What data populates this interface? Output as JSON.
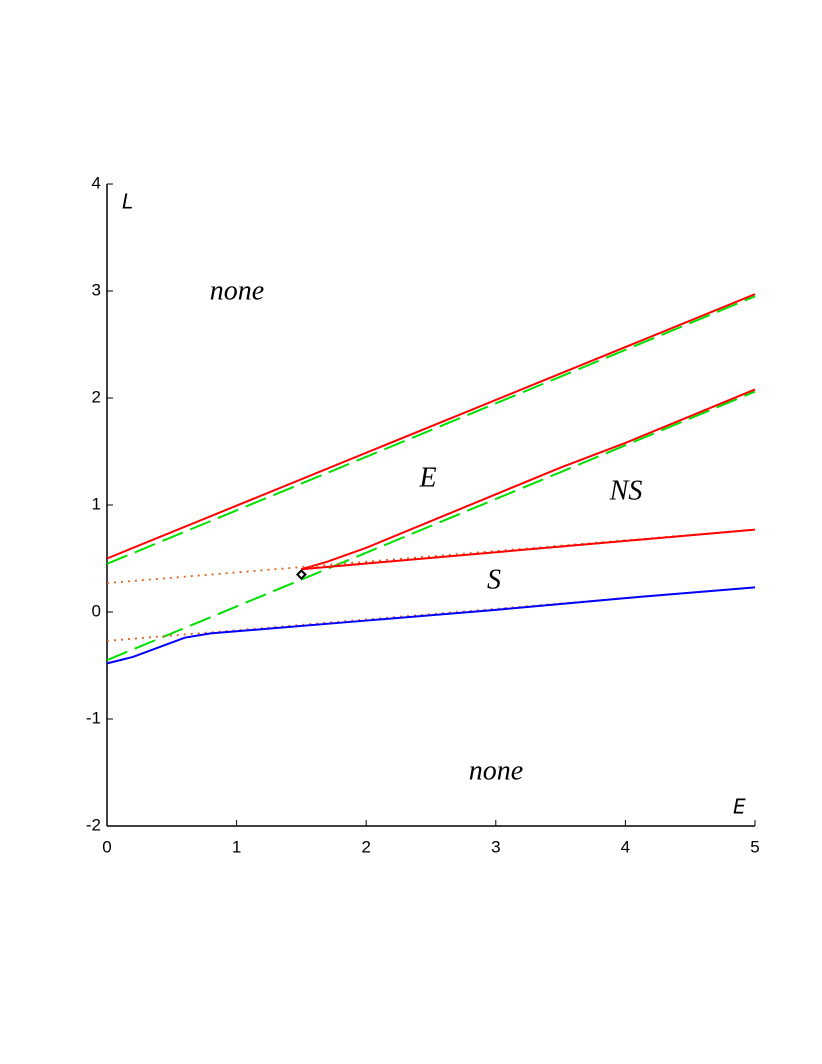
{
  "chart_data": {
    "type": "line",
    "x_label": "E",
    "y_label": "L",
    "xlim": [
      0,
      5
    ],
    "ylim": [
      -2,
      4
    ],
    "xticks": [
      0,
      1,
      2,
      3,
      4,
      5
    ],
    "yticks": [
      -2,
      -1,
      0,
      1,
      2,
      3,
      4
    ],
    "annotations": [
      "none",
      "E",
      "NS",
      "S",
      "none"
    ],
    "series": [
      {
        "color": "#ff0000",
        "style": "solid",
        "x": [
          0,
          5
        ],
        "values": [
          0.5,
          2.97
        ]
      },
      {
        "color": "#00e000",
        "style": "dash",
        "x": [
          0,
          5
        ],
        "values": [
          0.45,
          2.95
        ]
      },
      {
        "color": "#00e000",
        "style": "dash",
        "x": [
          0,
          5
        ],
        "values": [
          -0.45,
          2.06
        ]
      },
      {
        "color": "#ff0000",
        "style": "solid",
        "x": [
          1.5,
          1.7,
          2,
          2.5,
          3,
          3.5,
          4,
          4.5,
          5
        ],
        "values": [
          0.4,
          0.47,
          0.6,
          0.85,
          1.1,
          1.35,
          1.58,
          1.83,
          2.08
        ]
      },
      {
        "color": "#e06020",
        "style": "dot",
        "x": [
          0,
          5
        ],
        "values": [
          0.27,
          0.77
        ]
      },
      {
        "color": "#ff0000",
        "style": "solid",
        "x": [
          1.5,
          5
        ],
        "values": [
          0.4,
          0.77
        ]
      },
      {
        "color": "#e06020",
        "style": "dot",
        "x": [
          0,
          5
        ],
        "values": [
          -0.27,
          0.23
        ]
      },
      {
        "color": "#0000ff",
        "style": "solid",
        "x": [
          0,
          0.2,
          0.4,
          0.6,
          0.8,
          1,
          2,
          3,
          4,
          5
        ],
        "values": [
          -0.48,
          -0.42,
          -0.33,
          -0.24,
          -0.2,
          -0.18,
          -0.08,
          0.02,
          0.13,
          0.23
        ]
      },
      {
        "color": "#000000",
        "style": "diamond",
        "x": [
          1.5
        ],
        "values": [
          0.35
        ]
      }
    ]
  }
}
